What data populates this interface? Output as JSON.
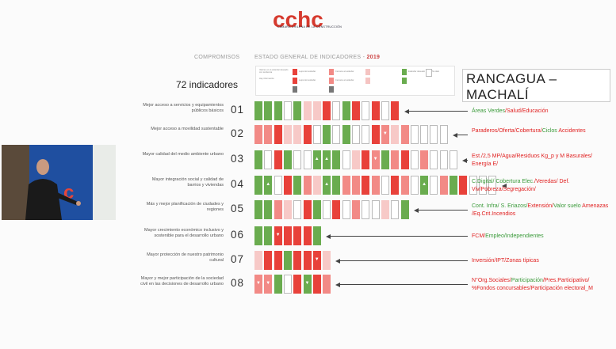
{
  "logo": {
    "text": "cchc",
    "subtitle": "CÁMARA CHILENA DE LA CONSTRUCCIÓN"
  },
  "header": {
    "col1": "COMPROMISOS",
    "col2": "ESTADO GENERAL DE INDICADORES - ",
    "year": "2019"
  },
  "indicator_count": "72 indicadores",
  "city": {
    "line1": "RANCAGUA –",
    "line2": "MACHALÍ"
  },
  "legend": {
    "items": [
      {
        "text": "Valores en el estándar deseado con tendencia"
      },
      {
        "text": "Hay información"
      },
      {
        "text": "Lejos del estándar"
      },
      {
        "text": "Lejos del estándar"
      },
      {
        "text": "Cercano al estándar"
      },
      {
        "text": "Cercano al estándar"
      },
      {
        "text": "Estándar deseado"
      },
      {
        "text": "No dato"
      }
    ],
    "colors": [
      "#e8413a",
      "#f28a86",
      "#f5c4c2",
      "#6aac4f",
      "#ffffff"
    ]
  },
  "rows": [
    {
      "label": "Mejor acceso a servicios y equipamientos públicos básicos",
      "num": "01",
      "cells": [
        "G",
        "G",
        "G",
        "W",
        "G",
        "P",
        "P",
        "R",
        "W",
        "G",
        "R",
        "W",
        "R",
        "W",
        "R"
      ],
      "desc": [
        [
          "g",
          "Áreas Verdes"
        ],
        [
          "r",
          "/Salud/Educación"
        ]
      ]
    },
    {
      "label": "Mejor acceso a movilidad sustentable",
      "num": "02",
      "cells": [
        "L",
        "L",
        "R",
        "P",
        "P",
        "R",
        "W",
        "G",
        "W",
        "G",
        "W",
        "W",
        "R",
        "L",
        "P",
        "L",
        "W",
        "W",
        "W",
        "W"
      ],
      "marks": {
        "13": "▼"
      },
      "desc": [
        [
          "r",
          "Paraderos/Oferta/Cobertura/"
        ],
        [
          "g",
          "Ciclos"
        ],
        [
          "r",
          " Accidentes"
        ]
      ]
    },
    {
      "label": "Mayor calidad del medio ambiente urbano",
      "num": "03",
      "cells": [
        "G",
        "W",
        "R",
        "G",
        "W",
        "W",
        "G",
        "G",
        "G",
        "W",
        "P",
        "R",
        "L",
        "G",
        "L",
        "R",
        "W",
        "L",
        "W",
        "W",
        "W"
      ],
      "marks": {
        "6": "▲",
        "7": "▲",
        "12": "▼",
        "16": "▲"
      },
      "desc": [
        [
          "r",
          "Est./2,5 MP/Agua/Residuos Kg_p y M Basurales/ Energía E/"
        ]
      ]
    },
    {
      "label": "Mayor integración social y calidad de barrios y viviendas",
      "num": "04",
      "cells": [
        "G",
        "G",
        "W",
        "R",
        "G",
        "L",
        "P",
        "G",
        "G",
        "L",
        "L",
        "R",
        "L",
        "W",
        "R",
        "L",
        "W",
        "G",
        "W",
        "L",
        "G",
        "R",
        "W",
        "W",
        "W"
      ],
      "marks": {
        "1": "▲",
        "7": "▲",
        "17": "▲"
      },
      "desc": [
        [
          "g",
          "C.Digital/ Cobertura Elec."
        ],
        [
          "r",
          "/Veredas/ Def. Viv/Pobreza/Segregación/"
        ]
      ]
    },
    {
      "label": "Más y mejor planificación de ciudades y regiones",
      "num": "05",
      "cells": [
        "G",
        "G",
        "L",
        "P",
        "W",
        "R",
        "G",
        "W",
        "R",
        "W",
        "L",
        "W",
        "W",
        "P",
        "W",
        "G"
      ],
      "desc": [
        [
          "g",
          "Cont. Infra/ S. Eriazos/"
        ],
        [
          "r",
          "Extensión/"
        ],
        [
          "g",
          "Valor suelo"
        ],
        [
          "r",
          " Amenazas /Eq.Crit.Incendios"
        ]
      ]
    },
    {
      "label": "Mayor crecimiento económico inclusivo y sostenible para el desarrollo urbano",
      "num": "06",
      "cells": [
        "G",
        "G",
        "R",
        "R",
        "R",
        "R",
        "G"
      ],
      "marks": {
        "2": "▼"
      },
      "desc": [
        [
          "r",
          "FCM/"
        ],
        [
          "g",
          "Empleo/Independientes"
        ]
      ]
    },
    {
      "label": "Mayor protección de nuestro patrimonio cultural",
      "num": "07",
      "cells": [
        "P",
        "R",
        "R",
        "G",
        "R",
        "R",
        "R",
        "P"
      ],
      "marks": {
        "6": "▼"
      },
      "desc": [
        [
          "r",
          "Inversión/IPT/Zonas típicas"
        ]
      ]
    },
    {
      "label": "Mayor y mejor participación de la sociedad civil en las decisiones de desarrollo urbano",
      "num": "08",
      "cells": [
        "L",
        "L",
        "G",
        "W",
        "R",
        "G",
        "R",
        "L"
      ],
      "marks": {
        "0": "▼",
        "1": "▼",
        "5": "▼"
      },
      "desc": [
        [
          "r",
          "N°Org.Sociales/"
        ],
        [
          "g",
          "Participación"
        ],
        [
          "r",
          "/Pres.Participativo/ %Fondos concursables/Participación electoral_M"
        ]
      ]
    }
  ]
}
